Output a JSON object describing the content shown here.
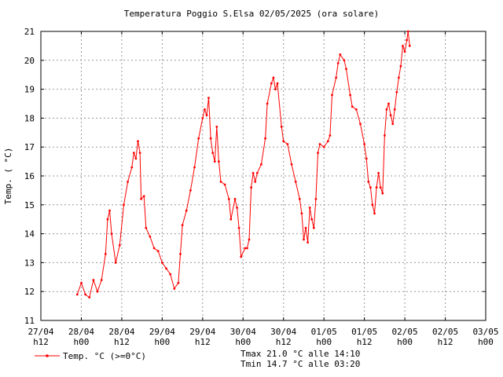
{
  "chart_data": {
    "type": "line",
    "title": "Temperatura Poggio S.Elsa 02/05/2025 (ora solare)",
    "ylabel": "Temp. ( °C)",
    "xlabel": "",
    "ylim": [
      11,
      21
    ],
    "y_ticks": [
      "11",
      "12",
      "13",
      "14",
      "15",
      "16",
      "17",
      "18",
      "19",
      "20",
      "21"
    ],
    "x_ticks": [
      {
        "l1": "27/04",
        "l2": "h12"
      },
      {
        "l1": "28/04",
        "l2": "h00"
      },
      {
        "l1": "28/04",
        "l2": "h12"
      },
      {
        "l1": "29/04",
        "l2": "h00"
      },
      {
        "l1": "29/04",
        "l2": "h12"
      },
      {
        "l1": "30/04",
        "l2": "h00"
      },
      {
        "l1": "30/04",
        "l2": "h12"
      },
      {
        "l1": "01/05",
        "l2": "h00"
      },
      {
        "l1": "01/05",
        "l2": "h12"
      },
      {
        "l1": "02/05",
        "l2": "h00"
      },
      {
        "l1": "02/05",
        "l2": "h12"
      },
      {
        "l1": "03/05",
        "l2": "h00"
      }
    ],
    "grid": true,
    "legend_position": "bottom-left",
    "series": [
      {
        "name": "Temp. °C (>=0°C)",
        "color": "#ff0000",
        "points": [
          [
            0.9,
            11.9
          ],
          [
            1.0,
            12.3
          ],
          [
            1.1,
            11.9
          ],
          [
            1.2,
            11.8
          ],
          [
            1.3,
            12.4
          ],
          [
            1.4,
            12.0
          ],
          [
            1.5,
            12.4
          ],
          [
            1.6,
            13.3
          ],
          [
            1.65,
            14.5
          ],
          [
            1.7,
            14.8
          ],
          [
            1.75,
            14.0
          ],
          [
            1.85,
            13.0
          ],
          [
            1.95,
            13.6
          ],
          [
            2.05,
            15.0
          ],
          [
            2.15,
            15.8
          ],
          [
            2.25,
            16.3
          ],
          [
            2.3,
            16.8
          ],
          [
            2.35,
            16.6
          ],
          [
            2.4,
            17.2
          ],
          [
            2.45,
            16.8
          ],
          [
            2.48,
            15.2
          ],
          [
            2.55,
            15.3
          ],
          [
            2.6,
            14.2
          ],
          [
            2.7,
            13.9
          ],
          [
            2.8,
            13.5
          ],
          [
            2.9,
            13.4
          ],
          [
            3.0,
            13.0
          ],
          [
            3.1,
            12.8
          ],
          [
            3.2,
            12.6
          ],
          [
            3.3,
            12.1
          ],
          [
            3.4,
            12.3
          ],
          [
            3.45,
            13.3
          ],
          [
            3.5,
            14.3
          ],
          [
            3.6,
            14.8
          ],
          [
            3.7,
            15.5
          ],
          [
            3.8,
            16.3
          ],
          [
            3.9,
            17.3
          ],
          [
            4.0,
            18.0
          ],
          [
            4.05,
            18.3
          ],
          [
            4.1,
            18.1
          ],
          [
            4.15,
            18.7
          ],
          [
            4.2,
            17.3
          ],
          [
            4.25,
            16.8
          ],
          [
            4.3,
            16.5
          ],
          [
            4.35,
            17.7
          ],
          [
            4.4,
            16.5
          ],
          [
            4.45,
            15.8
          ],
          [
            4.55,
            15.7
          ],
          [
            4.65,
            15.2
          ],
          [
            4.7,
            14.5
          ],
          [
            4.8,
            15.2
          ],
          [
            4.85,
            14.9
          ],
          [
            4.9,
            14.2
          ],
          [
            4.95,
            13.2
          ],
          [
            5.05,
            13.5
          ],
          [
            5.1,
            13.5
          ],
          [
            5.15,
            13.8
          ],
          [
            5.2,
            15.6
          ],
          [
            5.25,
            16.1
          ],
          [
            5.3,
            15.8
          ],
          [
            5.35,
            16.1
          ],
          [
            5.45,
            16.4
          ],
          [
            5.55,
            17.3
          ],
          [
            5.6,
            18.5
          ],
          [
            5.7,
            19.2
          ],
          [
            5.75,
            19.4
          ],
          [
            5.8,
            19.0
          ],
          [
            5.85,
            19.2
          ],
          [
            5.95,
            17.7
          ],
          [
            6.0,
            17.2
          ],
          [
            6.1,
            17.1
          ],
          [
            6.2,
            16.4
          ],
          [
            6.3,
            15.8
          ],
          [
            6.4,
            15.2
          ],
          [
            6.45,
            14.7
          ],
          [
            6.5,
            13.8
          ],
          [
            6.55,
            14.2
          ],
          [
            6.6,
            13.7
          ],
          [
            6.65,
            14.9
          ],
          [
            6.7,
            14.5
          ],
          [
            6.75,
            14.2
          ],
          [
            6.8,
            15.2
          ],
          [
            6.85,
            16.8
          ],
          [
            6.9,
            17.1
          ],
          [
            7.0,
            17.0
          ],
          [
            7.1,
            17.2
          ],
          [
            7.15,
            17.4
          ],
          [
            7.2,
            18.8
          ],
          [
            7.3,
            19.4
          ],
          [
            7.35,
            19.9
          ],
          [
            7.4,
            20.2
          ],
          [
            7.5,
            20.0
          ],
          [
            7.55,
            19.7
          ],
          [
            7.65,
            18.8
          ],
          [
            7.7,
            18.4
          ],
          [
            7.8,
            18.3
          ],
          [
            7.9,
            17.8
          ],
          [
            8.0,
            17.1
          ],
          [
            8.05,
            16.6
          ],
          [
            8.1,
            15.8
          ],
          [
            8.15,
            15.6
          ],
          [
            8.2,
            15.0
          ],
          [
            8.25,
            14.7
          ],
          [
            8.3,
            15.6
          ],
          [
            8.35,
            16.1
          ],
          [
            8.4,
            15.6
          ],
          [
            8.45,
            15.4
          ],
          [
            8.5,
            17.4
          ],
          [
            8.55,
            18.3
          ],
          [
            8.6,
            18.5
          ],
          [
            8.65,
            18.1
          ],
          [
            8.7,
            17.8
          ],
          [
            8.75,
            18.3
          ],
          [
            8.8,
            18.9
          ],
          [
            8.85,
            19.4
          ],
          [
            8.9,
            19.8
          ],
          [
            8.95,
            20.5
          ],
          [
            9.0,
            20.3
          ],
          [
            9.05,
            20.7
          ],
          [
            9.08,
            21.0
          ],
          [
            9.12,
            20.5
          ]
        ]
      }
    ],
    "annotations": [
      "Tmax 21.0 °C alle 14:10",
      "Tmin 14.7 °C alle 03:20"
    ]
  }
}
